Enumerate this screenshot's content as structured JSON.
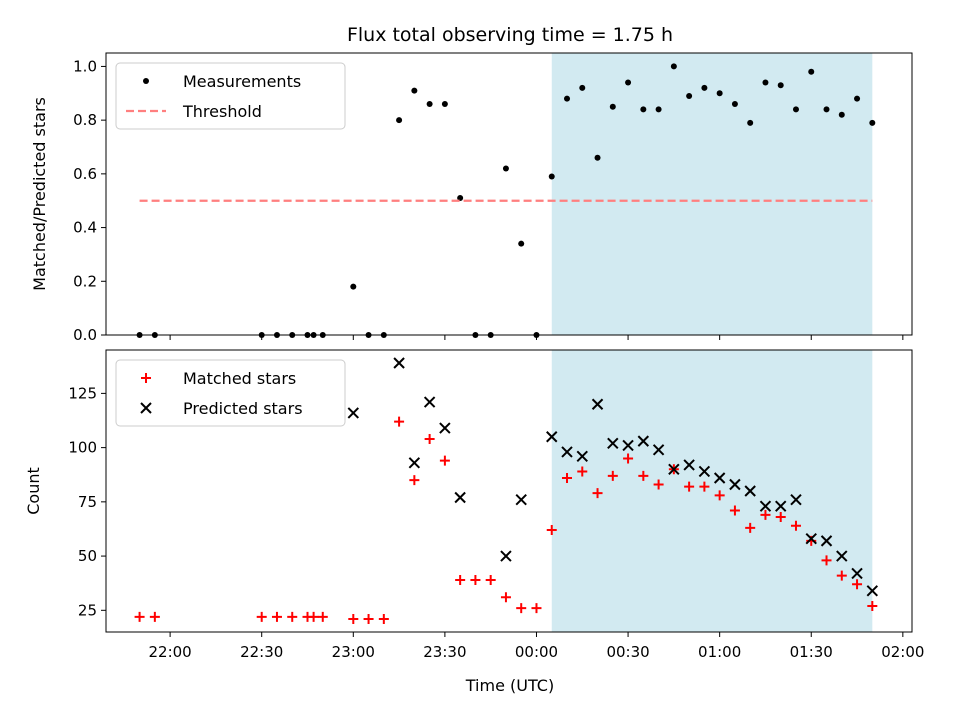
{
  "chart_data": {
    "title": "Flux total observing time = 1.75 h",
    "xlabel": "Time (UTC)",
    "x_ticks": [
      "22:00",
      "22:30",
      "23:00",
      "23:30",
      "00:00",
      "00:30",
      "01:00",
      "01:30",
      "02:00"
    ],
    "shaded_region": {
      "start": "00:05",
      "end": "01:50",
      "color": "#add8e6"
    },
    "panels": [
      {
        "type": "scatter",
        "ylabel": "Matched/Predicted stars",
        "ylim": [
          0,
          1.05
        ],
        "y_ticks": [
          "0.0",
          "0.2",
          "0.4",
          "0.6",
          "0.8",
          "1.0"
        ],
        "legend": "top-left",
        "series": [
          {
            "name": "Measurements",
            "marker": "dot",
            "color": "#000000",
            "x": [
              "21:50",
              "21:55",
              "22:30",
              "22:35",
              "22:40",
              "22:45",
              "22:47",
              "22:50",
              "23:00",
              "23:05",
              "23:10",
              "23:15",
              "23:20",
              "23:25",
              "23:30",
              "23:35",
              "23:40",
              "23:45",
              "23:50",
              "23:55",
              "00:00",
              "00:05",
              "00:10",
              "00:15",
              "00:20",
              "00:25",
              "00:30",
              "00:35",
              "00:40",
              "00:45",
              "00:50",
              "00:55",
              "01:00",
              "01:05",
              "01:10",
              "01:15",
              "01:20",
              "01:25",
              "01:30",
              "01:35",
              "01:40",
              "01:45",
              "01:50"
            ],
            "y": [
              0.0,
              0.0,
              0.0,
              0.0,
              0.0,
              0.0,
              0.0,
              0.0,
              0.18,
              0.0,
              0.0,
              0.8,
              0.91,
              0.86,
              0.86,
              0.51,
              0.0,
              0.0,
              0.62,
              0.34,
              0.0,
              0.59,
              0.88,
              0.92,
              0.66,
              0.85,
              0.94,
              0.84,
              0.84,
              1.0,
              0.89,
              0.92,
              0.9,
              0.86,
              0.79,
              0.94,
              0.93,
              0.84,
              0.98,
              0.84,
              0.82,
              0.88,
              0.79
            ]
          },
          {
            "name": "Threshold",
            "marker": "dashed-line",
            "color": "#ff7f7f",
            "x": [
              "21:50",
              "01:50"
            ],
            "y": [
              0.5,
              0.5
            ]
          }
        ]
      },
      {
        "type": "scatter",
        "ylabel": "Count",
        "ylim": [
          15,
          145
        ],
        "y_ticks": [
          "25",
          "50",
          "75",
          "100",
          "125"
        ],
        "legend": "top-left",
        "series": [
          {
            "name": "Matched stars",
            "marker": "plus",
            "color": "#ff0000",
            "x": [
              "21:50",
              "21:55",
              "22:30",
              "22:35",
              "22:40",
              "22:45",
              "22:47",
              "22:50",
              "23:00",
              "23:05",
              "23:10",
              "23:15",
              "23:20",
              "23:25",
              "23:30",
              "23:35",
              "23:40",
              "23:45",
              "23:50",
              "23:55",
              "00:00",
              "00:05",
              "00:10",
              "00:15",
              "00:20",
              "00:25",
              "00:30",
              "00:35",
              "00:40",
              "00:45",
              "00:50",
              "00:55",
              "01:00",
              "01:05",
              "01:10",
              "01:15",
              "01:20",
              "01:25",
              "01:30",
              "01:35",
              "01:40",
              "01:45",
              "01:50"
            ],
            "y": [
              22,
              22,
              22,
              22,
              22,
              22,
              22,
              22,
              21,
              21,
              21,
              112,
              85,
              104,
              94,
              39,
              39,
              39,
              31,
              26,
              26,
              62,
              86,
              89,
              79,
              87,
              95,
              87,
              83,
              90,
              82,
              82,
              78,
              71,
              63,
              69,
              68,
              64,
              57,
              48,
              41,
              37,
              27
            ]
          },
          {
            "name": "Predicted stars",
            "marker": "x",
            "color": "#000000",
            "x": [
              "23:00",
              "23:15",
              "23:20",
              "23:25",
              "23:30",
              "23:35",
              "23:50",
              "23:55",
              "00:05",
              "00:10",
              "00:15",
              "00:20",
              "00:25",
              "00:30",
              "00:35",
              "00:40",
              "00:45",
              "00:50",
              "00:55",
              "01:00",
              "01:05",
              "01:10",
              "01:15",
              "01:20",
              "01:25",
              "01:30",
              "01:35",
              "01:40",
              "01:45",
              "01:50"
            ],
            "y": [
              116,
              139,
              93,
              121,
              109,
              77,
              50,
              76,
              105,
              98,
              96,
              120,
              102,
              101,
              103,
              99,
              90,
              92,
              89,
              86,
              83,
              80,
              73,
              73,
              76,
              58,
              57,
              50,
              42,
              34
            ]
          }
        ]
      }
    ]
  }
}
